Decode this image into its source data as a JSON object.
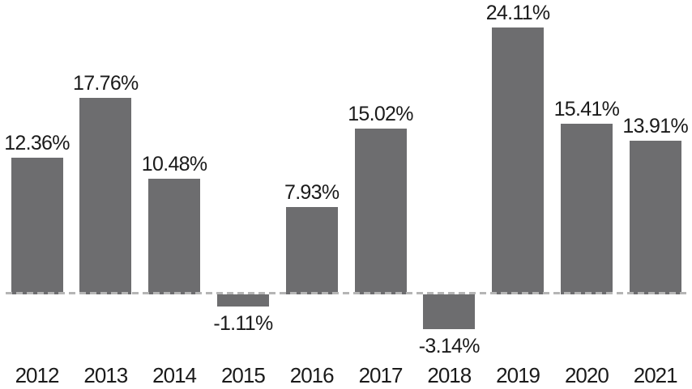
{
  "chart_data": {
    "type": "bar",
    "title": "",
    "xlabel": "",
    "ylabel": "",
    "categories": [
      "2012",
      "2013",
      "2014",
      "2015",
      "2016",
      "2017",
      "2018",
      "2019",
      "2020",
      "2021"
    ],
    "values": [
      12.36,
      17.76,
      10.48,
      -1.11,
      7.93,
      15.02,
      -3.14,
      24.11,
      15.41,
      13.91
    ],
    "value_labels": [
      "12.36%",
      "17.76%",
      "10.48%",
      "-1.11%",
      "7.93%",
      "15.02%",
      "-3.14%",
      "24.11%",
      "15.41%",
      "13.91%"
    ],
    "ylim": [
      -5,
      26
    ],
    "grid": "off",
    "legend": "none",
    "zero_baseline": "dashed",
    "colors": {
      "bar": "#6d6d6f",
      "baseline": "#b5b5b5",
      "label_text": "#1a1a1a",
      "background": "#ffffff"
    }
  }
}
